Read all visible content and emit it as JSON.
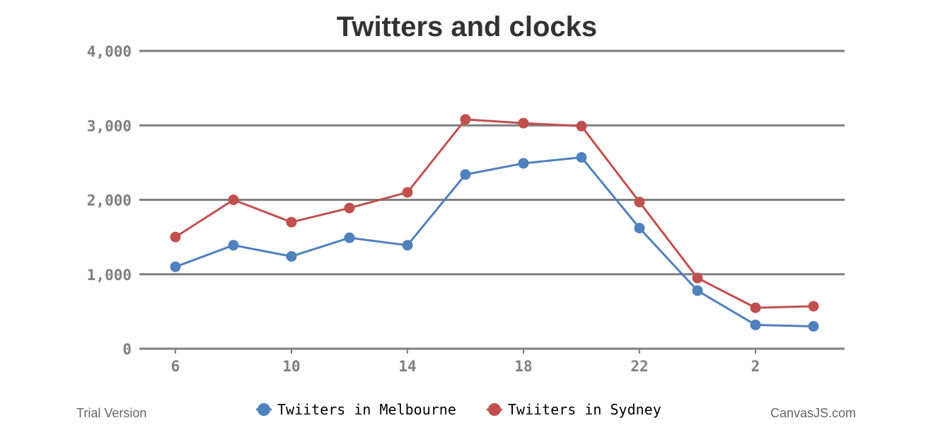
{
  "chart_data": {
    "type": "line",
    "title": "Twitters and clocks",
    "xlabel": "",
    "ylabel": "",
    "x_tick_labels": [
      "6",
      "10",
      "14",
      "18",
      "22",
      "2"
    ],
    "categories": [
      "6",
      "8",
      "10",
      "12",
      "14",
      "16",
      "18",
      "20",
      "22",
      "24",
      "2",
      "4"
    ],
    "ylim": [
      0,
      4000
    ],
    "y_ticks": [
      0,
      1000,
      2000,
      3000,
      4000
    ],
    "y_tick_labels": [
      "0",
      "1,000",
      "2,000",
      "3,000",
      "4,000"
    ],
    "grid": true,
    "legend_position": "bottom-center",
    "series": [
      {
        "name": "Twiiters in Melbourne",
        "color": "#4f81bc",
        "values": [
          1100,
          1390,
          1240,
          1490,
          1390,
          2340,
          2490,
          2570,
          1620,
          780,
          320,
          300
        ]
      },
      {
        "name": "Twiiters in Sydney",
        "color": "#c0504e",
        "values": [
          1500,
          2000,
          1700,
          1890,
          2100,
          3080,
          3030,
          2990,
          1970,
          950,
          550,
          570
        ]
      }
    ]
  },
  "footer": {
    "left_text": "Trial Version",
    "right_text": "CanvasJS.com"
  },
  "colors": {
    "grid": "#7f7f7f",
    "axis_text": "#7f7f7f",
    "title": "#333333",
    "legend_text": "#000000"
  }
}
